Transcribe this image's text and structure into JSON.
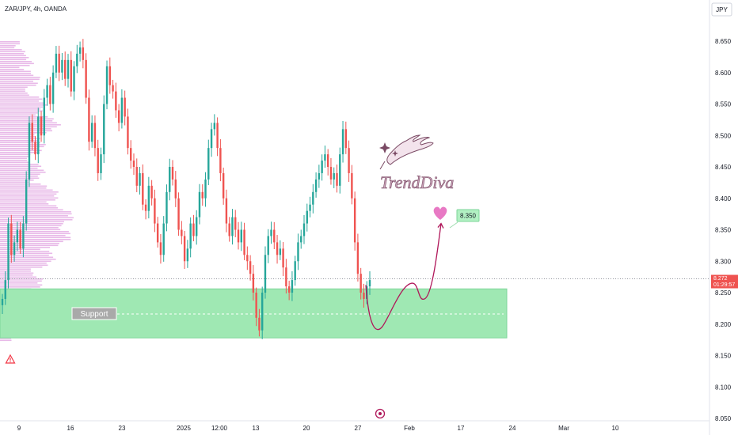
{
  "header": {
    "symbol": "ZAR/JPY, 4h, OANDA"
  },
  "currency_button": {
    "label": "JPY"
  },
  "support_zone": {
    "label": "Support",
    "low": 8.178,
    "high": 8.256,
    "mid": 8.216
  },
  "target": {
    "label": "8.350",
    "value": 8.35
  },
  "watermark": {
    "text": "TrendDiva"
  },
  "last_price": {
    "value": "8.272",
    "countdown": "01:29:57"
  },
  "colors": {
    "up": "#26a69a",
    "down": "#ef5350",
    "support_fill": "#9fe8b3",
    "support_border": "#7ed69a",
    "path": "#b0175a",
    "target_fill": "#b2f0c3",
    "heart": "#e879c4",
    "profile": "#d57fd6"
  },
  "icons": [
    "warning-icon",
    "event-marker-icon",
    "heart-icon",
    "hand-icon"
  ],
  "chart_data": {
    "type": "candlestick",
    "ylim": [
      8.05,
      8.68
    ],
    "yticks": [
      "8.650",
      "8.600",
      "8.550",
      "8.500",
      "8.450",
      "8.400",
      "8.350",
      "8.300",
      "8.250",
      "8.200",
      "8.150",
      "8.100",
      "8.050"
    ],
    "xticks": [
      "9",
      "16",
      "23",
      "2025",
      "12:00",
      "13",
      "20",
      "27",
      "Feb",
      "17",
      "24",
      "Mar",
      "10"
    ],
    "trend_path": [
      {
        "t": 0,
        "v": 8.262
      },
      {
        "t": 0.22,
        "v": 8.196
      },
      {
        "t": 0.62,
        "v": 8.265
      },
      {
        "t": 0.78,
        "v": 8.24
      },
      {
        "t": 1,
        "v": 8.36
      }
    ],
    "closes": [
      8.24,
      8.27,
      8.36,
      8.31,
      8.33,
      8.35,
      8.32,
      8.36,
      8.43,
      8.52,
      8.49,
      8.47,
      8.53,
      8.5,
      8.56,
      8.58,
      8.55,
      8.6,
      8.63,
      8.6,
      8.62,
      8.59,
      8.62,
      8.57,
      8.61,
      8.63,
      8.64,
      8.62,
      8.56,
      8.49,
      8.52,
      8.48,
      8.44,
      8.47,
      8.55,
      8.61,
      8.58,
      8.57,
      8.54,
      8.52,
      8.56,
      8.53,
      8.48,
      8.46,
      8.45,
      8.42,
      8.44,
      8.39,
      8.38,
      8.42,
      8.4,
      8.36,
      8.33,
      8.31,
      8.36,
      8.41,
      8.45,
      8.43,
      8.4,
      8.35,
      8.34,
      8.3,
      8.32,
      8.36,
      8.34,
      8.37,
      8.41,
      8.4,
      8.43,
      8.48,
      8.51,
      8.52,
      8.48,
      8.44,
      8.4,
      8.36,
      8.34,
      8.37,
      8.35,
      8.33,
      8.35,
      8.31,
      8.3,
      8.28,
      8.25,
      8.21,
      8.19,
      8.25,
      8.31,
      8.34,
      8.35,
      8.33,
      8.31,
      8.32,
      8.29,
      8.26,
      8.25,
      8.27,
      8.3,
      8.33,
      8.34,
      8.36,
      8.38,
      8.39,
      8.41,
      8.43,
      8.44,
      8.46,
      8.47,
      8.45,
      8.43,
      8.44,
      8.42,
      8.47,
      8.51,
      8.48,
      8.44,
      8.4,
      8.33,
      8.28,
      8.25,
      8.24,
      8.26,
      8.27
    ]
  }
}
